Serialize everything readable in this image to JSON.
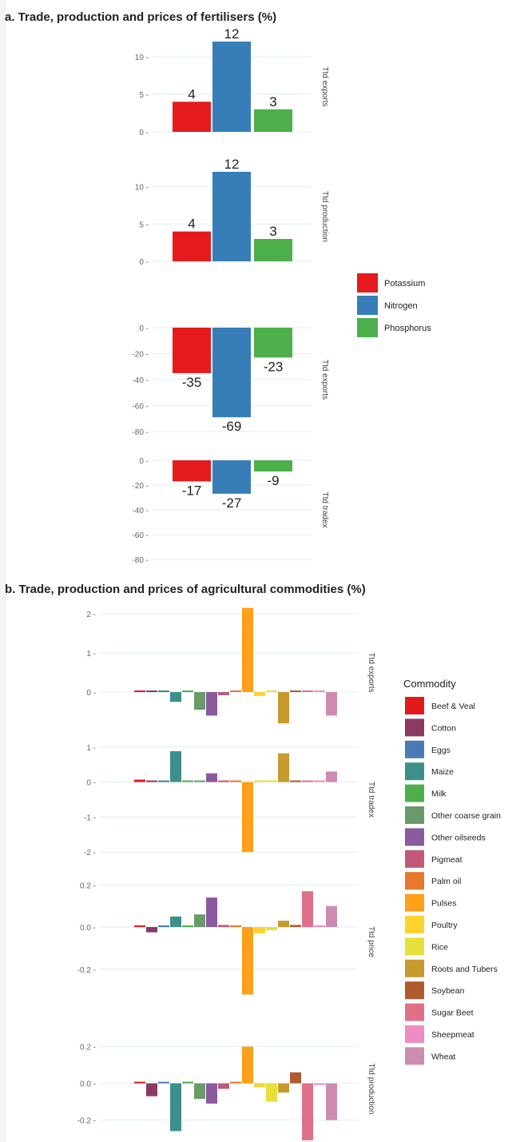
{
  "section_a_title": "a. Trade, production and prices of fertilisers (%)",
  "section_b_title": "b. Trade, production and prices of agricultural commodities (%)",
  "legend_b_title": "Commodity",
  "chart_data": [
    {
      "type": "bar",
      "panel_title": "a. Trade, production and prices of fertilisers (%)",
      "categories": [
        "Potassium",
        "Nitrogen",
        "Phosphorus"
      ],
      "colors": [
        "#e41a1c",
        "#377eb8",
        "#4daf4a"
      ],
      "facets": [
        {
          "strip": "Ttd exports",
          "values": [
            4,
            12,
            3
          ],
          "ylim": [
            0,
            12
          ],
          "yticks": [
            0,
            5,
            10
          ],
          "ytick_labels": [
            "0 -",
            "5 -",
            "10 -"
          ],
          "data_labels": [
            "4",
            "12",
            "3"
          ]
        },
        {
          "strip": "Ttd production",
          "values": [
            4,
            12,
            3
          ],
          "ylim": [
            0,
            12
          ],
          "yticks": [
            0,
            5,
            10
          ],
          "ytick_labels": [
            "0 -",
            "5 -",
            "10 -"
          ],
          "data_labels": [
            "4",
            "12",
            "3"
          ]
        },
        {
          "strip": "Ttd exports",
          "values": [
            -35,
            -69,
            -23
          ],
          "ylim": [
            -80,
            0
          ],
          "yticks": [
            0,
            -20,
            -40,
            -60,
            -80
          ],
          "ytick_labels": [
            "0 -",
            "-20 -",
            "-40 -",
            "-60 -",
            "-80 -"
          ],
          "data_labels": [
            "-35",
            "-69",
            "-23"
          ]
        },
        {
          "strip": "Ttd tradex",
          "values": [
            -17,
            -27,
            -9
          ],
          "ylim": [
            -80,
            0
          ],
          "yticks": [
            0,
            -20,
            -40,
            -60,
            -80
          ],
          "ytick_labels": [
            "0 -",
            "-20 -",
            "-40 -",
            "-60 -",
            "-80 -"
          ],
          "data_labels": [
            "-17",
            "-27",
            "-9"
          ]
        }
      ],
      "legend": {
        "placement": "right",
        "entries": [
          "Potassium",
          "Nitrogen",
          "Phosphorus"
        ]
      },
      "grid": true
    },
    {
      "type": "bar",
      "panel_title": "b. Trade, production and prices of agricultural commodities (%)",
      "categories": [
        "Beef & Veal",
        "Cotton",
        "Eggs",
        "Maize",
        "Milk",
        "Other coarse grain",
        "Other oilseeds",
        "Pigmeat",
        "Palm oil",
        "Pulses",
        "Poultry",
        "Rice",
        "Roots and Tubers",
        "Soybean",
        "Sugar Beet",
        "Sheepmeat",
        "Wheat"
      ],
      "colors": [
        "#e31a1c",
        "#8b3a62",
        "#4a7ab5",
        "#3d8f8a",
        "#4daf4a",
        "#6a9a6a",
        "#8a5a9e",
        "#c05878",
        "#e87830",
        "#ff9f1a",
        "#ffd22e",
        "#e8e03a",
        "#c89a2e",
        "#b05a30",
        "#e07088",
        "#f08cc0",
        "#cc8cb0"
      ],
      "facets": [
        {
          "strip": "Ttd exports",
          "ylim": [
            -1,
            2
          ],
          "yticks": [
            0,
            1,
            2
          ],
          "ytick_labels": [
            "0 -",
            "1 -",
            "2 -"
          ],
          "values": [
            0.02,
            0.02,
            0,
            -0.25,
            0,
            -0.45,
            -0.6,
            -0.08,
            0,
            2.15,
            -0.1,
            0,
            -0.8,
            0,
            0.02,
            0.02,
            -0.6
          ]
        },
        {
          "strip": "Ttd tradex",
          "ylim": [
            -2.2,
            1.2
          ],
          "yticks": [
            1,
            0,
            -1,
            -2
          ],
          "ytick_labels": [
            "1 -",
            "0 -",
            "-1 -",
            "-2 -"
          ],
          "values": [
            0.07,
            0.04,
            0,
            0.88,
            0.02,
            0.04,
            0.25,
            0.03,
            0,
            -2.0,
            0,
            0.02,
            0.82,
            0,
            0.02,
            0.02,
            0.3
          ]
        },
        {
          "strip": "Ttd price",
          "ylim": [
            -0.36,
            0.22
          ],
          "yticks": [
            0.2,
            0,
            -0.2
          ],
          "ytick_labels": [
            "0.2 -",
            "0.0 -",
            "-0.2 -"
          ],
          "values": [
            0.005,
            -0.025,
            0,
            0.05,
            0,
            0.06,
            0.14,
            0.01,
            0,
            -0.32,
            -0.03,
            -0.015,
            0.03,
            0.01,
            0.17,
            0.005,
            0.1
          ]
        },
        {
          "strip": "Ttd production",
          "ylim": [
            -0.28,
            0.22
          ],
          "yticks": [
            0.2,
            0,
            -0.2
          ],
          "ytick_labels": [
            "0.2 -",
            "0.0 -",
            "-0.2 -"
          ],
          "values": [
            0.005,
            -0.07,
            0,
            -0.26,
            0,
            -0.085,
            -0.11,
            -0.03,
            0,
            0.2,
            -0.02,
            -0.1,
            -0.05,
            0.06,
            -0.31,
            -0.005,
            -0.2
          ]
        }
      ],
      "legend": {
        "placement": "right",
        "title": "Commodity",
        "entries": [
          "Beef & Veal",
          "Cotton",
          "Eggs",
          "Maize",
          "Milk",
          "Other coarse grain",
          "Other oilseeds",
          "Pigmeat",
          "Palm oil",
          "Pulses",
          "Poultry",
          "Rice",
          "Roots and Tubers",
          "Soybean",
          "Sugar Beet",
          "Sheepmeat",
          "Wheat"
        ]
      },
      "grid": true
    }
  ]
}
